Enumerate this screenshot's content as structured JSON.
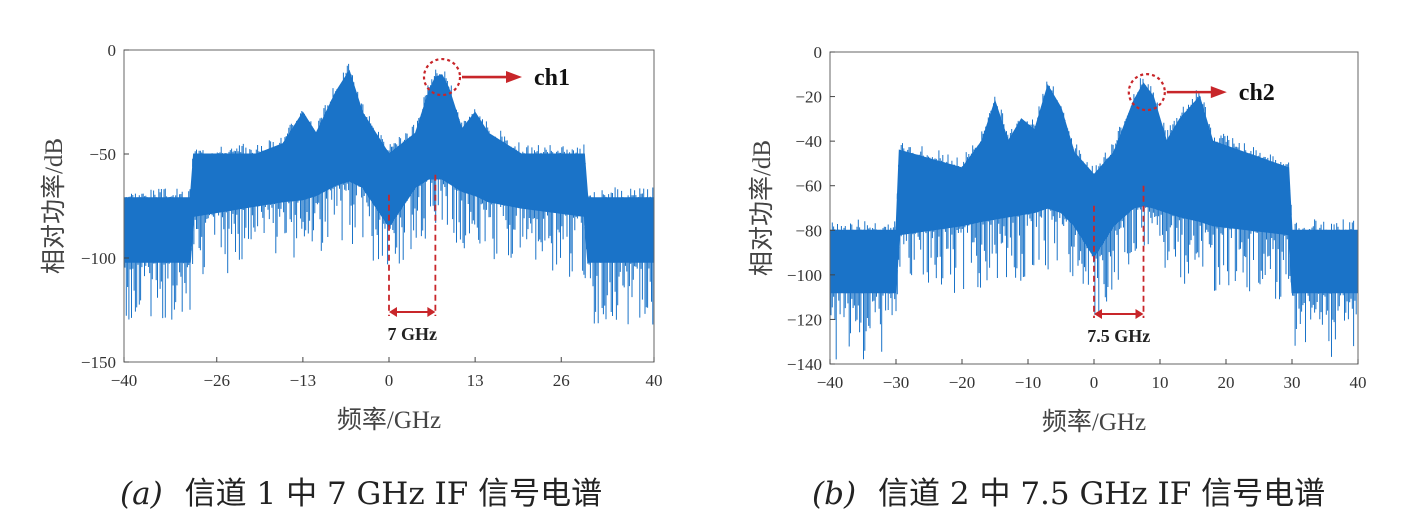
{
  "chart_data": [
    {
      "type": "area",
      "xlabel": "频率/GHz",
      "ylabel": "相对功率/dB",
      "xlim": [
        -40,
        40
      ],
      "ylim": [
        -150,
        0
      ],
      "xticks": [
        -40,
        -26,
        -13,
        0,
        13,
        26,
        40
      ],
      "yticks": [
        0,
        -50,
        -100,
        -150
      ],
      "x": [
        -40,
        -30,
        -29.5,
        -20,
        -16,
        -13,
        -11,
        -8,
        -6,
        -4,
        0,
        4,
        6,
        7,
        8,
        9,
        11,
        13,
        15,
        20,
        29.5,
        30,
        40
      ],
      "upper": [
        -71,
        -71,
        -50,
        -50,
        -45,
        -30,
        -40,
        -20,
        -10,
        -30,
        -50,
        -40,
        -20,
        -13,
        -12,
        -18,
        -38,
        -30,
        -40,
        -50,
        -50,
        -71,
        -71
      ],
      "lower": [
        -102,
        -102,
        -80,
        -75,
        -73,
        -72,
        -70,
        -65,
        -63,
        -66,
        -85,
        -66,
        -62,
        -62,
        -62,
        -64,
        -68,
        -70,
        -73,
        -76,
        -80,
        -102,
        -102
      ],
      "annotations": [
        {
          "type": "circle",
          "x": 8,
          "y": -13,
          "label": "ch1"
        },
        {
          "type": "bracket",
          "x1": 0,
          "x2": 7,
          "label": "7 GHz"
        }
      ]
    },
    {
      "type": "area",
      "xlabel": "频率/GHz",
      "ylabel": "相对功率/dB",
      "xlim": [
        -40,
        40
      ],
      "ylim": [
        -140,
        0
      ],
      "xticks": [
        -40,
        -30,
        -20,
        -10,
        0,
        10,
        20,
        30,
        40
      ],
      "yticks": [
        0,
        -20,
        -40,
        -60,
        -80,
        -100,
        -120,
        -140
      ],
      "x": [
        -40,
        -30,
        -29.5,
        -20,
        -17,
        -15,
        -13,
        -11,
        -9,
        -7,
        -5,
        -3,
        0,
        3,
        6,
        7.5,
        9,
        11,
        13,
        16,
        18,
        29.5,
        30,
        40
      ],
      "upper": [
        -80,
        -80,
        -44,
        -52,
        -40,
        -22,
        -40,
        -30,
        -35,
        -15,
        -25,
        -45,
        -55,
        -45,
        -22,
        -14,
        -20,
        -40,
        -30,
        -20,
        -40,
        -52,
        -80,
        -80
      ],
      "lower": [
        -108,
        -108,
        -82,
        -78,
        -76,
        -75,
        -74,
        -73,
        -72,
        -70,
        -72,
        -78,
        -92,
        -78,
        -70,
        -69,
        -70,
        -72,
        -74,
        -76,
        -78,
        -82,
        -108,
        -108
      ],
      "annotations": [
        {
          "type": "circle",
          "x": 8,
          "y": -18,
          "label": "ch2"
        },
        {
          "type": "bracket",
          "x1": 0,
          "x2": 7.5,
          "label": "7.5 GHz"
        }
      ]
    }
  ],
  "captions": [
    {
      "label": "(a)",
      "text": "信道 1 中 7 GHz IF 信号电谱"
    },
    {
      "label": "(b)",
      "text": "信道 2 中 7.5 GHz IF 信号电谱"
    }
  ]
}
